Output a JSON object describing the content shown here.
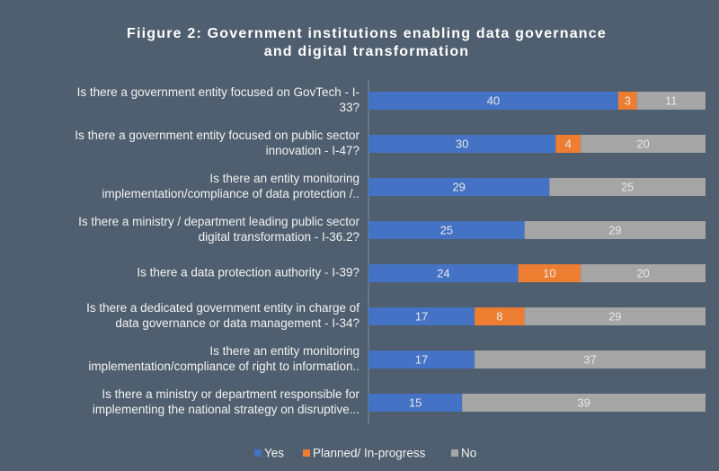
{
  "chart_data": {
    "type": "stacked-bar-horizontal",
    "title": [
      "Fiigure 2: Government institutions enabling data governance",
      "and digital transformation"
    ],
    "categories": [
      [
        "Is there a government entity focused on GovTech - I-",
        "33?"
      ],
      [
        "Is there a government entity focused on public sector",
        "innovation - I-47?"
      ],
      [
        "Is there an entity monitoring",
        "implementation/compliance of data protection /.."
      ],
      [
        "Is there a ministry / department leading public sector",
        "digital transformation - I-36.2?"
      ],
      [
        "Is there a data protection authority - I-39?"
      ],
      [
        "Is there a dedicated government entity in charge of",
        "data governance or data management - I-34?"
      ],
      [
        "Is there an entity monitoring",
        "implementation/compliance of right to information.."
      ],
      [
        "Is there a ministry or department responsible for",
        "implementing the national strategy on disruptive..."
      ]
    ],
    "series": [
      {
        "name": "Yes",
        "color": "#4472c4",
        "values": [
          40,
          30,
          29,
          25,
          24,
          17,
          17,
          15
        ]
      },
      {
        "name": "Planned/ In-progress",
        "color": "#ed7d31",
        "values": [
          3,
          4,
          0,
          0,
          10,
          8,
          0,
          0
        ]
      },
      {
        "name": "No",
        "color": "#a5a5a5",
        "values": [
          11,
          20,
          25,
          29,
          20,
          29,
          37,
          39
        ]
      }
    ],
    "xlim": [
      0,
      54
    ]
  }
}
